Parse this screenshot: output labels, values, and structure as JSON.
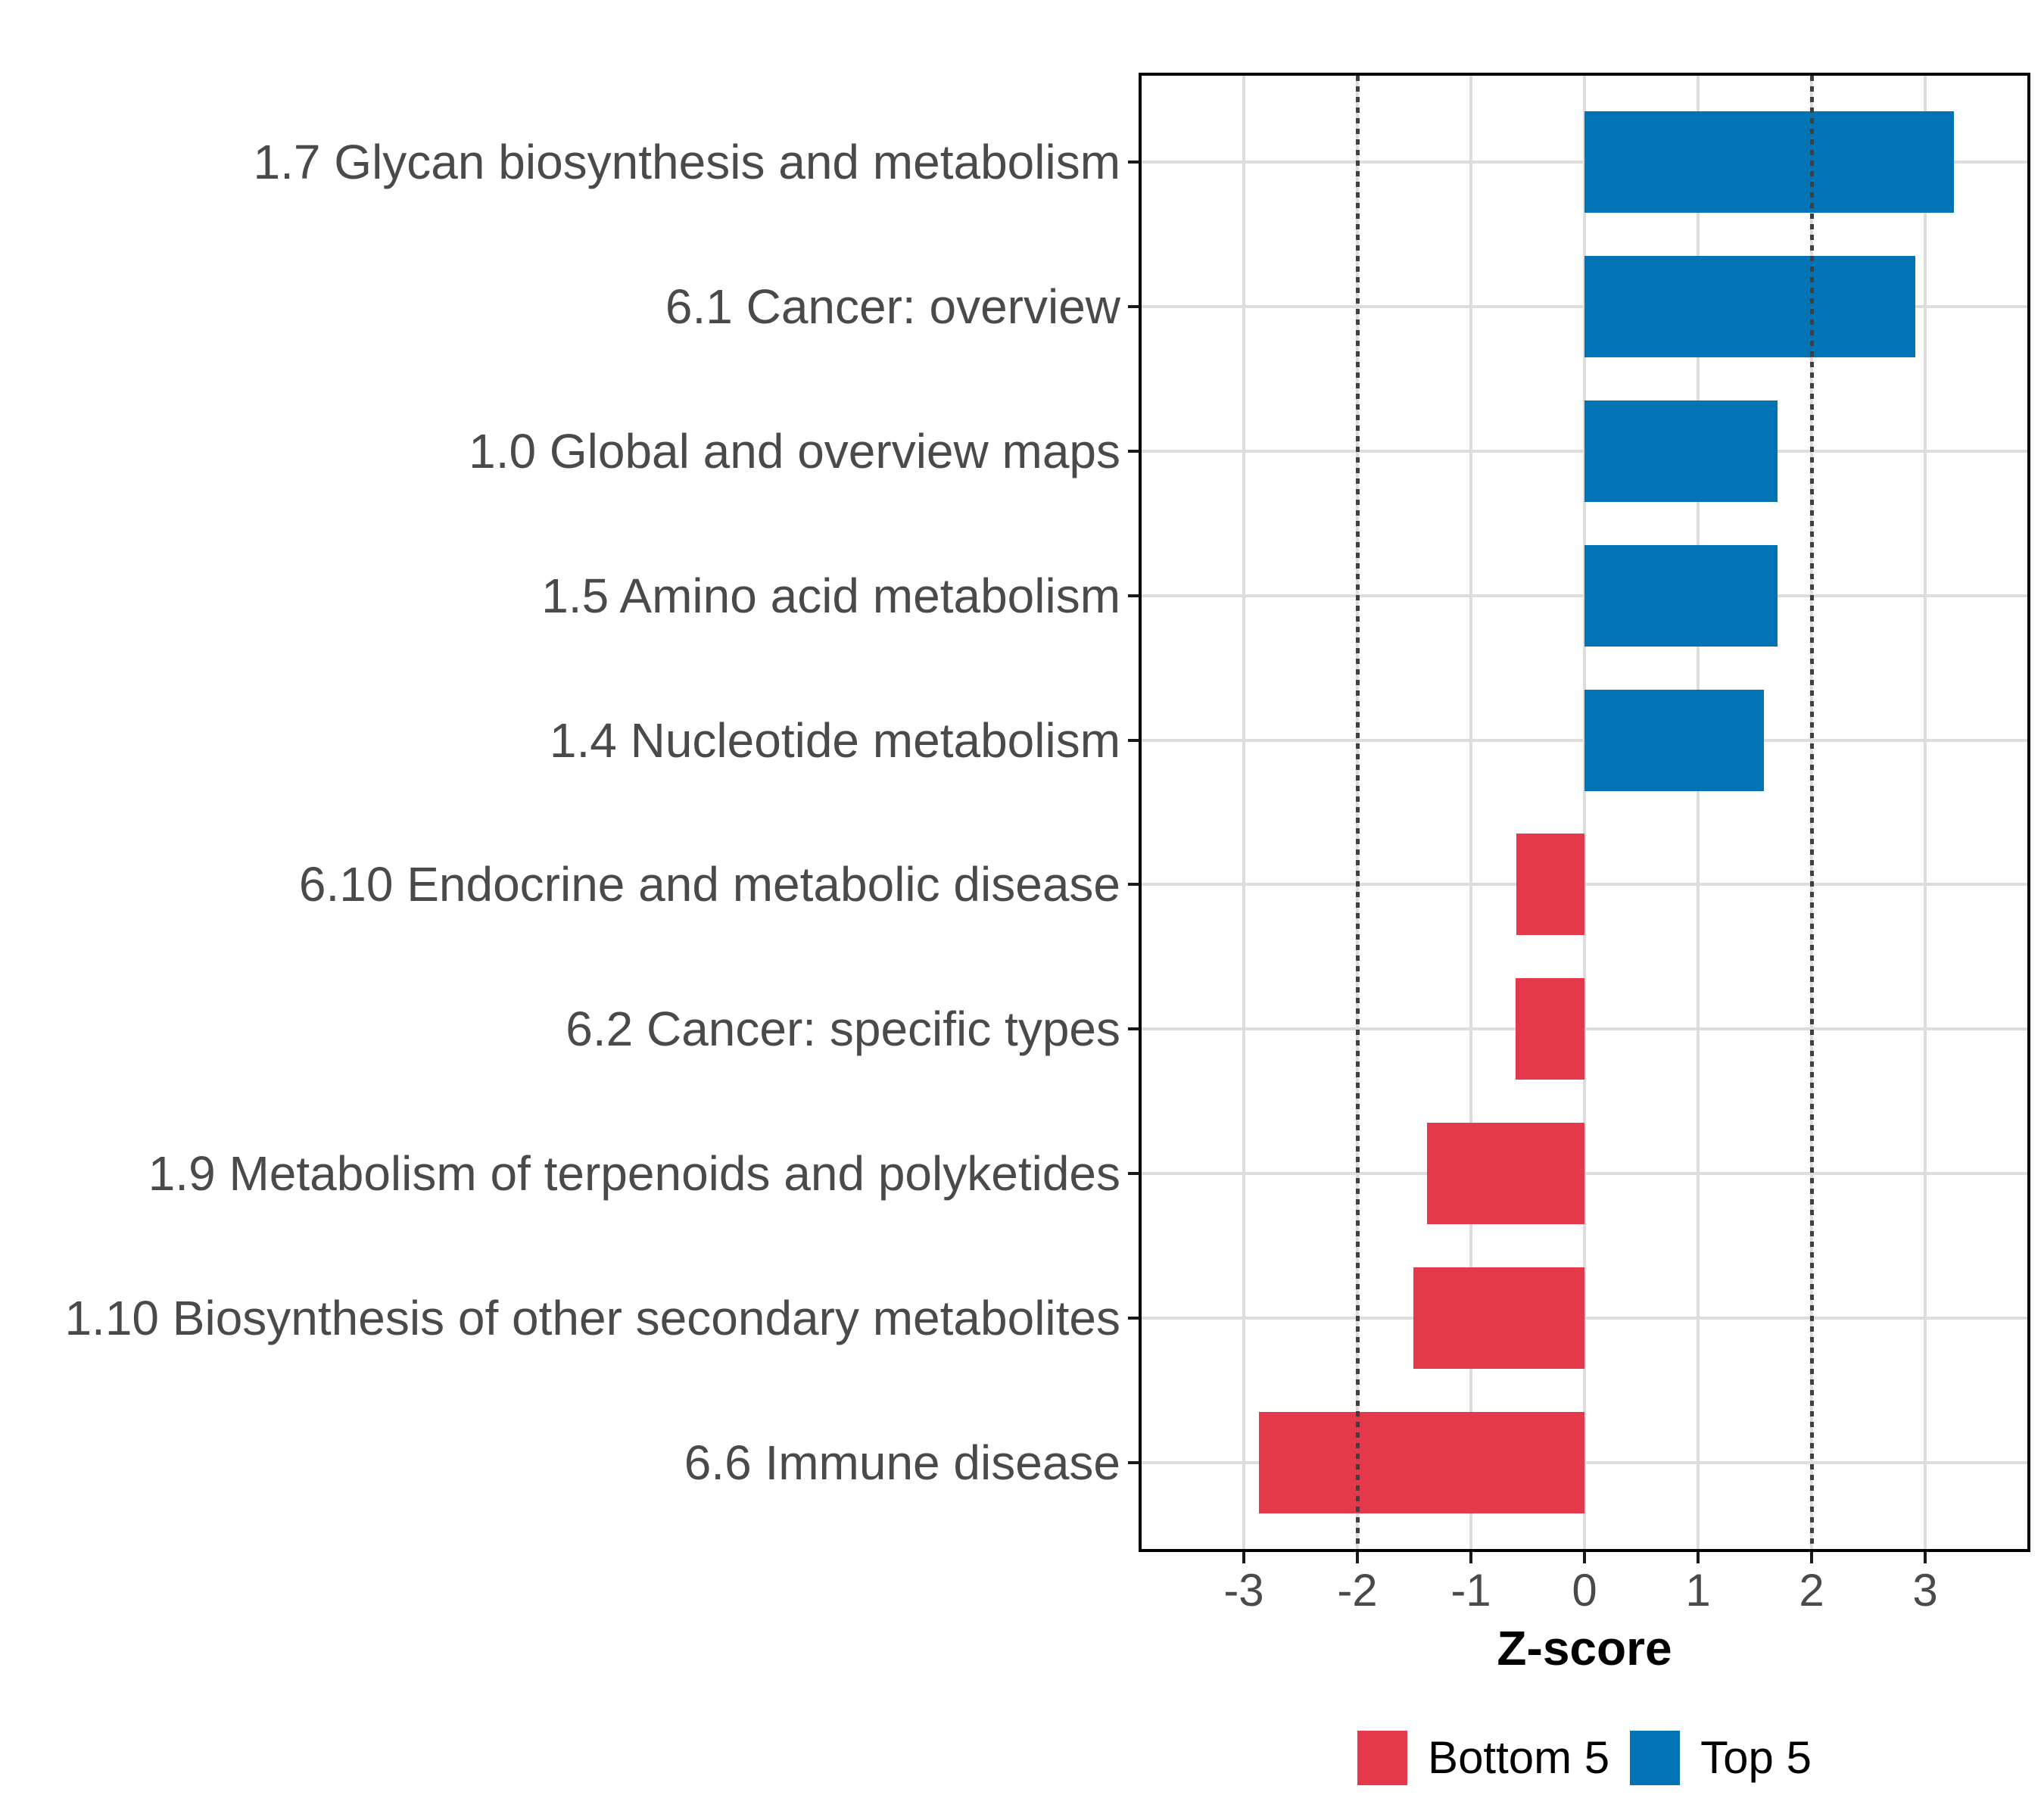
{
  "chart_data": {
    "type": "bar",
    "orientation": "horizontal",
    "title": "",
    "xlabel": "Z-score",
    "ylabel": "",
    "categories": [
      "1.7 Glycan biosynthesis and metabolism",
      "6.1 Cancer: overview",
      "1.0 Global and overview maps",
      "1.5 Amino acid metabolism",
      "1.4 Nucleotide metabolism",
      "6.10 Endocrine and metabolic disease",
      "6.2 Cancer: specific types",
      "1.9 Metabolism of terpenoids and polyketides",
      "1.10 Biosynthesis of other secondary metabolites",
      "6.6 Immune disease"
    ],
    "values": [
      3.25,
      2.91,
      1.7,
      1.7,
      1.58,
      -0.6,
      -0.61,
      -1.39,
      -1.51,
      -2.87
    ],
    "groups": [
      "Top 5",
      "Top 5",
      "Top 5",
      "Top 5",
      "Top 5",
      "Bottom 5",
      "Bottom 5",
      "Bottom 5",
      "Bottom 5",
      "Bottom 5"
    ],
    "colors": {
      "Top 5": "#0274B6",
      "Bottom 5": "#E4394B"
    },
    "xlim": [
      -3.9,
      3.9
    ],
    "xticks": [
      -3,
      -2,
      -1,
      0,
      1,
      2,
      3
    ],
    "xtick_labels": [
      "-3",
      "-2",
      "-1",
      "0",
      "1",
      "2",
      "3"
    ],
    "reference_lines": {
      "values": [
        -2,
        2
      ],
      "style": "dotted",
      "color": "#3f3f3f"
    },
    "grid": {
      "show": true,
      "color": "#dddddd"
    },
    "panel_border_color": "#000000",
    "axis_text_color": "#4a4a4a",
    "legend": {
      "position": "bottom",
      "entries": [
        {
          "label": "Bottom 5",
          "color": "#E4394B"
        },
        {
          "label": "Top 5",
          "color": "#0274B6"
        }
      ]
    }
  }
}
